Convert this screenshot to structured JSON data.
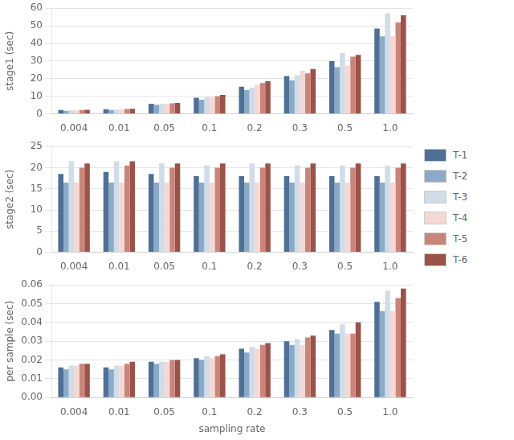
{
  "chart_data": [
    {
      "type": "bar",
      "ylabel": "stage1 (sec)",
      "categories": [
        "0.004",
        "0.01",
        "0.05",
        "0.1",
        "0.2",
        "0.3",
        "0.5",
        "1.0"
      ],
      "series": [
        {
          "name": "T-1",
          "color": "#4f6f96",
          "values": [
            2.2,
            2.7,
            5.8,
            9.2,
            15.5,
            21.5,
            30.0,
            48.5
          ]
        },
        {
          "name": "T-2",
          "color": "#8aaac8",
          "values": [
            1.8,
            2.2,
            5.2,
            8.0,
            13.5,
            19.0,
            26.5,
            44.0
          ]
        },
        {
          "name": "T-3",
          "color": "#d0dce8",
          "values": [
            2.0,
            2.5,
            5.5,
            9.5,
            15.0,
            22.0,
            34.5,
            57.0
          ]
        },
        {
          "name": "T-4",
          "color": "#f5d8d4",
          "values": [
            2.0,
            2.5,
            5.8,
            9.5,
            16.5,
            24.5,
            27.5,
            44.0
          ]
        },
        {
          "name": "T-5",
          "color": "#c9857a",
          "values": [
            2.2,
            2.8,
            6.0,
            10.0,
            17.5,
            23.0,
            32.5,
            52.0
          ]
        },
        {
          "name": "T-6",
          "color": "#9b5248",
          "values": [
            2.3,
            2.9,
            6.2,
            10.8,
            18.5,
            25.5,
            33.5,
            56.0
          ]
        }
      ],
      "ylim": [
        0,
        60
      ],
      "yticks": [
        0,
        10,
        20,
        30,
        40,
        50,
        60
      ],
      "grid": true
    },
    {
      "type": "bar",
      "ylabel": "stage2 (sec)",
      "categories": [
        "0.004",
        "0.01",
        "0.05",
        "0.1",
        "0.2",
        "0.3",
        "0.5",
        "1.0"
      ],
      "series": [
        {
          "name": "T-1",
          "color": "#4f6f96",
          "values": [
            18.5,
            19.0,
            18.5,
            18.0,
            18.0,
            18.0,
            18.0,
            18.0
          ]
        },
        {
          "name": "T-2",
          "color": "#8aaac8",
          "values": [
            16.5,
            16.5,
            16.5,
            16.5,
            16.5,
            16.5,
            16.5,
            16.5
          ]
        },
        {
          "name": "T-3",
          "color": "#d0dce8",
          "values": [
            21.5,
            21.5,
            21.0,
            20.5,
            21.0,
            20.5,
            20.5,
            20.5
          ]
        },
        {
          "name": "T-4",
          "color": "#f5d8d4",
          "values": [
            16.5,
            16.5,
            16.5,
            16.5,
            16.5,
            16.5,
            16.5,
            16.5
          ]
        },
        {
          "name": "T-5",
          "color": "#c9857a",
          "values": [
            20.0,
            20.5,
            20.0,
            20.0,
            20.0,
            20.0,
            20.0,
            20.0
          ]
        },
        {
          "name": "T-6",
          "color": "#9b5248",
          "values": [
            21.0,
            21.5,
            21.0,
            21.0,
            21.0,
            21.0,
            21.0,
            21.0
          ]
        }
      ],
      "ylim": [
        0,
        25
      ],
      "yticks": [
        0,
        5,
        10,
        15,
        20,
        25
      ],
      "grid": true,
      "legend": "right"
    },
    {
      "type": "bar",
      "ylabel": "per sample (sec)",
      "xlabel": "sampling rate",
      "categories": [
        "0.004",
        "0.01",
        "0.05",
        "0.1",
        "0.2",
        "0.3",
        "0.5",
        "1.0"
      ],
      "series": [
        {
          "name": "T-1",
          "color": "#4f6f96",
          "values": [
            0.016,
            0.016,
            0.019,
            0.021,
            0.026,
            0.03,
            0.036,
            0.051
          ]
        },
        {
          "name": "T-2",
          "color": "#8aaac8",
          "values": [
            0.015,
            0.015,
            0.018,
            0.02,
            0.024,
            0.028,
            0.034,
            0.046
          ]
        },
        {
          "name": "T-3",
          "color": "#d0dce8",
          "values": [
            0.017,
            0.017,
            0.019,
            0.022,
            0.027,
            0.031,
            0.039,
            0.057
          ]
        },
        {
          "name": "T-4",
          "color": "#f5d8d4",
          "values": [
            0.017,
            0.017,
            0.019,
            0.021,
            0.026,
            0.028,
            0.034,
            0.046
          ]
        },
        {
          "name": "T-5",
          "color": "#c9857a",
          "values": [
            0.018,
            0.018,
            0.02,
            0.022,
            0.028,
            0.032,
            0.034,
            0.053
          ]
        },
        {
          "name": "T-6",
          "color": "#9b5248",
          "values": [
            0.018,
            0.019,
            0.02,
            0.023,
            0.029,
            0.033,
            0.04,
            0.058
          ]
        }
      ],
      "ylim": [
        0,
        0.06
      ],
      "yticks": [
        {
          "value": 0,
          "label": "0.00"
        },
        {
          "value": 0.01,
          "label": "0.01"
        },
        {
          "value": 0.02,
          "label": "0.02"
        },
        {
          "value": 0.03,
          "label": "0.03"
        },
        {
          "value": 0.04,
          "label": "0.04"
        },
        {
          "value": 0.05,
          "label": "0.05"
        },
        {
          "value": 0.06,
          "label": "0.06"
        }
      ],
      "grid": true
    }
  ]
}
